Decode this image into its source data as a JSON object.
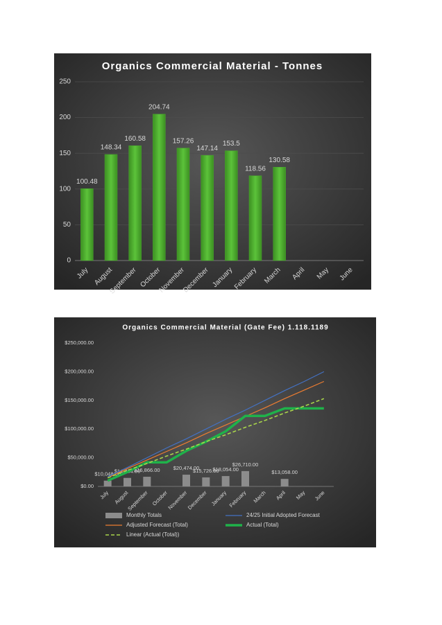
{
  "chart_data": [
    {
      "type": "bar",
      "title": "Organics Commercial Material - Tonnes",
      "categories": [
        "July",
        "August",
        "September",
        "October",
        "November",
        "December",
        "January",
        "February",
        "March",
        "April",
        "May",
        "June"
      ],
      "values": [
        100.48,
        148.34,
        160.58,
        204.74,
        157.26,
        147.14,
        153.5,
        118.56,
        130.58,
        null,
        null,
        null
      ],
      "color": "#4aa72e",
      "ylim": [
        0,
        250
      ],
      "yticks": [
        0,
        50,
        100,
        150,
        200,
        250
      ],
      "grid": true,
      "data_labels": true
    },
    {
      "type": "combo",
      "title": "Organics Commercial Material (Gate Fee) 1.118.1189",
      "categories": [
        "July",
        "August",
        "September",
        "October",
        "November",
        "December",
        "January",
        "February",
        "March",
        "April",
        "May",
        "June"
      ],
      "series": [
        {
          "name": "Monthly Totals",
          "type": "bar",
          "color": "#8c8c8c",
          "values": [
            10048,
            14834,
            16866,
            null,
            20474,
            15726,
            18054,
            26710,
            null,
            13058,
            null,
            null
          ],
          "value_labels": [
            "$10,048.00",
            "$14,834.00",
            "$16,866.00",
            null,
            "$20,474.00",
            "$15,726.00",
            "$18,054.00",
            "$26,710.00",
            null,
            "$13,058.00",
            null,
            null
          ]
        },
        {
          "name": "24/25 Initial Adopted Forecast",
          "type": "line",
          "style": "solid",
          "color": "#4472c4",
          "values": [
            17000,
            33000,
            50000,
            67000,
            83000,
            100000,
            117000,
            133000,
            150000,
            167000,
            183000,
            200000
          ]
        },
        {
          "name": "Adjusted Forecast (Total)",
          "type": "line",
          "style": "solid",
          "color": "#ed7d31",
          "values": [
            15000,
            31000,
            46000,
            61000,
            76000,
            92000,
            107000,
            122000,
            137000,
            153000,
            168000,
            183000
          ]
        },
        {
          "name": "Actual (Total)",
          "type": "line",
          "style": "bold",
          "color": "#1fb24a",
          "values": [
            10000,
            25000,
            42000,
            42000,
            62000,
            78000,
            96000,
            123000,
            123000,
            136000,
            136000,
            136000
          ]
        },
        {
          "name": "Linear (Actual (Total))",
          "type": "line",
          "style": "dashed",
          "color": "#a9d64b",
          "values": [
            15000,
            28000,
            40000,
            53000,
            65000,
            78000,
            90000,
            103000,
            115000,
            128000,
            140000,
            153000
          ]
        }
      ],
      "ylim": [
        0,
        250000
      ],
      "yticks": [
        {
          "value": 0,
          "label": "$0.00"
        },
        {
          "value": 50000,
          "label": "$50,000.00"
        },
        {
          "value": 100000,
          "label": "$100,000.00"
        },
        {
          "value": 150000,
          "label": "$150,000.00"
        },
        {
          "value": 200000,
          "label": "$200,000.00"
        },
        {
          "value": 250000,
          "label": "$250,000.00"
        }
      ],
      "grid": false,
      "legend": "bottom"
    }
  ]
}
